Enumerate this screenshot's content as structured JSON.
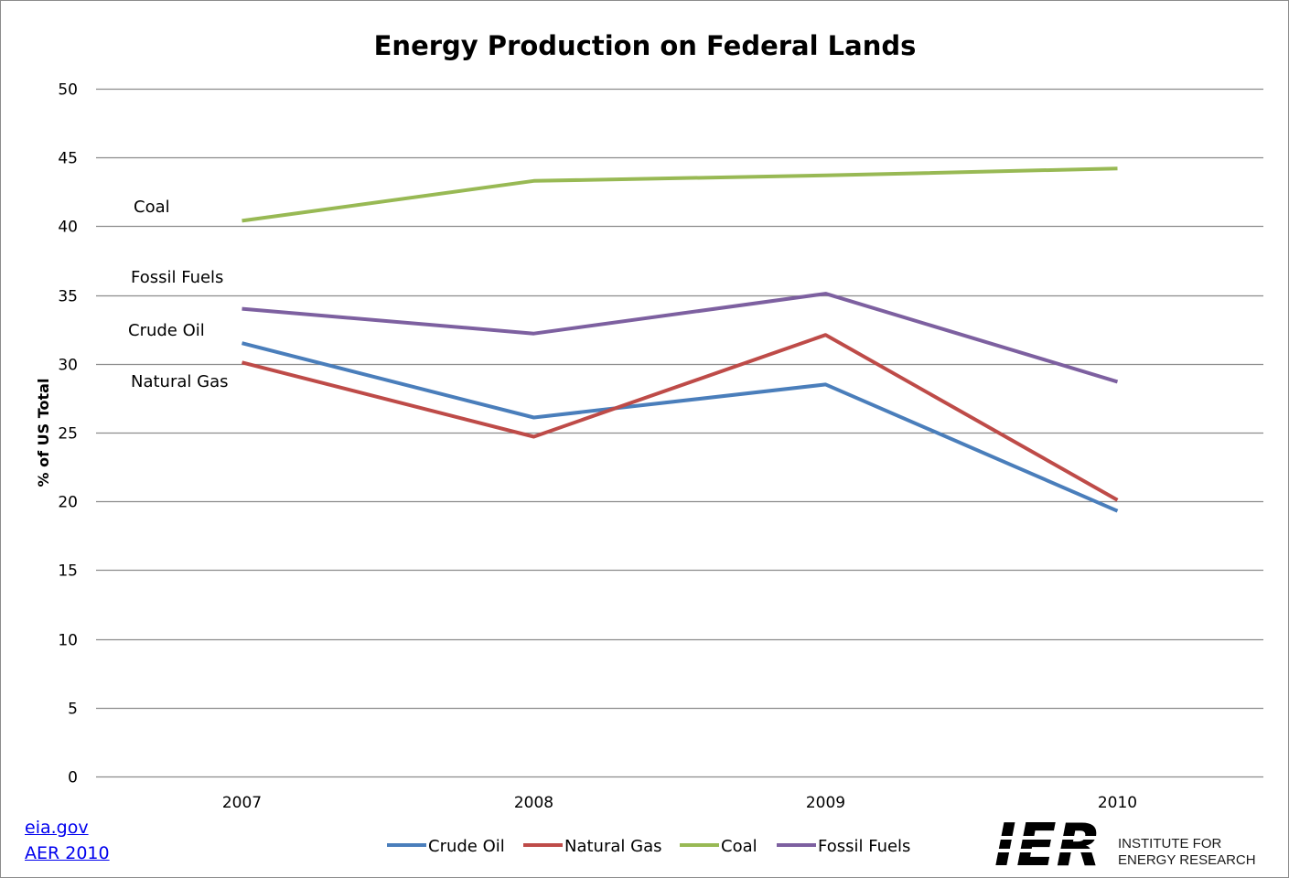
{
  "chart_data": {
    "type": "line",
    "title": "Energy Production on Federal Lands",
    "ylabel": "% of US Total",
    "xlabel": "",
    "categories": [
      "2007",
      "2008",
      "2009",
      "2010"
    ],
    "ylim": [
      0,
      50
    ],
    "yticks": [
      0,
      5,
      10,
      15,
      20,
      25,
      30,
      35,
      40,
      45,
      50
    ],
    "grid": true,
    "legend_position": "bottom",
    "series": [
      {
        "name": "Crude Oil",
        "color": "#4a7ebb",
        "values": [
          31.5,
          26.1,
          28.5,
          19.3
        ]
      },
      {
        "name": "Natural Gas",
        "color": "#be4b48",
        "values": [
          30.1,
          24.7,
          32.1,
          20.1
        ]
      },
      {
        "name": "Coal",
        "color": "#98b954",
        "values": [
          40.4,
          43.3,
          43.7,
          44.2
        ]
      },
      {
        "name": "Fossil Fuels",
        "color": "#7d60a0",
        "values": [
          34.0,
          32.2,
          35.1,
          28.7
        ]
      }
    ],
    "annotations": [
      {
        "text": "Coal"
      },
      {
        "text": "Fossil Fuels"
      },
      {
        "text": "Crude Oil"
      },
      {
        "text": "Natural Gas"
      }
    ]
  },
  "sources": {
    "link1": "eia.gov",
    "link2": "AER 2010"
  },
  "logo": {
    "mark": "IER",
    "line1": "INSTITUTE FOR",
    "line2": "ENERGY RESEARCH"
  }
}
